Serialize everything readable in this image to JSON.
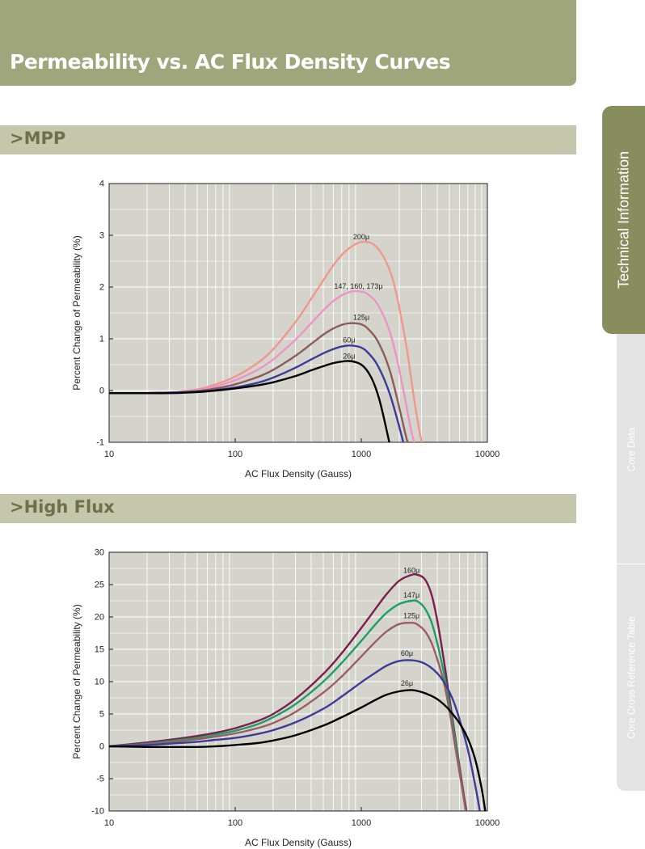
{
  "header": {
    "title": "Permeability vs. AC Flux Density Curves"
  },
  "side_tabs": [
    {
      "label": "Technical Information",
      "active": true
    },
    {
      "label": "Core Data",
      "active": false
    },
    {
      "label": "Core Cross Reference Table",
      "active": false
    }
  ],
  "sections": [
    {
      "label": "MPP"
    },
    {
      "label": "High Flux"
    }
  ],
  "colors": {
    "header_bg": "#a0a67c",
    "section_bg": "#c4c7ab",
    "tab_active": "#878d5c",
    "plot_bg": "#d4d4cc"
  },
  "chart_data": [
    {
      "type": "line",
      "xscale": "log",
      "xlim": [
        10,
        10000
      ],
      "ylim": [
        -1,
        4
      ],
      "xticks": [
        10,
        100,
        1000,
        10000
      ],
      "xtick_labels": [
        "10",
        "100",
        "1000",
        "10000"
      ],
      "yticks": [
        -1,
        0,
        1,
        2,
        3,
        4
      ],
      "ytick_labels": [
        "-1",
        "0",
        "1",
        "2",
        "3",
        "4"
      ],
      "xlabel": "AC Flux Density (Gauss)",
      "ylabel": "Percent Change of Permeability (%)",
      "grid": true,
      "series": [
        {
          "name": "200μ",
          "color": "#f0988a",
          "label_at": [
            1000,
            2.92
          ],
          "x": [
            10,
            20,
            30,
            50,
            70,
            100,
            150,
            200,
            300,
            400,
            500,
            600,
            700,
            800,
            900,
            1000,
            1200,
            1400,
            1600,
            1800,
            2000,
            2300,
            2600,
            2900,
            3100
          ],
          "y": [
            -0.05,
            -0.05,
            -0.04,
            0.02,
            0.12,
            0.27,
            0.53,
            0.8,
            1.32,
            1.77,
            2.13,
            2.42,
            2.62,
            2.75,
            2.83,
            2.87,
            2.85,
            2.7,
            2.45,
            2.1,
            1.6,
            0.8,
            -0.1,
            -0.8,
            -1.1
          ]
        },
        {
          "name": "147, 160, 173μ",
          "color": "#ec94c8",
          "label_at": [
            950,
            1.97
          ],
          "x": [
            10,
            20,
            30,
            50,
            70,
            100,
            150,
            200,
            300,
            400,
            500,
            600,
            700,
            800,
            900,
            1000,
            1100,
            1300,
            1500,
            1700,
            1900,
            2100,
            2300,
            2500,
            2700
          ],
          "y": [
            -0.05,
            -0.05,
            -0.04,
            0.0,
            0.08,
            0.2,
            0.4,
            0.6,
            0.98,
            1.3,
            1.55,
            1.73,
            1.84,
            1.9,
            1.92,
            1.91,
            1.88,
            1.72,
            1.45,
            1.1,
            0.65,
            0.15,
            -0.35,
            -0.8,
            -1.1
          ]
        },
        {
          "name": "125μ",
          "color": "#8c5c5c",
          "label_at": [
            1000,
            1.37
          ],
          "x": [
            10,
            20,
            30,
            50,
            70,
            100,
            150,
            200,
            300,
            400,
            500,
            600,
            700,
            800,
            900,
            1000,
            1100,
            1300,
            1500,
            1700,
            1900,
            2100,
            2300,
            2450
          ],
          "y": [
            -0.05,
            -0.05,
            -0.04,
            -0.01,
            0.04,
            0.12,
            0.26,
            0.4,
            0.67,
            0.9,
            1.08,
            1.2,
            1.27,
            1.3,
            1.3,
            1.28,
            1.22,
            1.02,
            0.72,
            0.35,
            -0.1,
            -0.55,
            -0.95,
            -1.1
          ]
        },
        {
          "name": "60μ",
          "color": "#3c3c98",
          "label_at": [
            800,
            0.93
          ],
          "x": [
            10,
            20,
            30,
            50,
            70,
            100,
            150,
            200,
            300,
            400,
            500,
            600,
            700,
            800,
            900,
            1000,
            1100,
            1300,
            1500,
            1700,
            1900,
            2100,
            2200
          ],
          "y": [
            -0.05,
            -0.05,
            -0.04,
            -0.02,
            0.01,
            0.06,
            0.15,
            0.25,
            0.44,
            0.6,
            0.72,
            0.8,
            0.85,
            0.87,
            0.86,
            0.83,
            0.76,
            0.55,
            0.25,
            -0.1,
            -0.5,
            -0.9,
            -1.1
          ]
        },
        {
          "name": "26μ",
          "color": "#000000",
          "label_at": [
            800,
            0.62
          ],
          "x": [
            10,
            20,
            30,
            50,
            70,
            100,
            150,
            200,
            300,
            400,
            500,
            600,
            700,
            800,
            900,
            1000,
            1100,
            1200,
            1300,
            1400,
            1500,
            1600,
            1700
          ],
          "y": [
            -0.05,
            -0.05,
            -0.05,
            -0.03,
            0.0,
            0.04,
            0.1,
            0.16,
            0.28,
            0.39,
            0.47,
            0.53,
            0.56,
            0.57,
            0.55,
            0.5,
            0.4,
            0.25,
            0.05,
            -0.2,
            -0.5,
            -0.8,
            -1.1
          ]
        }
      ]
    },
    {
      "type": "line",
      "xscale": "log",
      "xlim": [
        10,
        10000
      ],
      "ylim": [
        -10,
        30
      ],
      "xticks": [
        10,
        100,
        1000,
        10000
      ],
      "xtick_labels": [
        "10",
        "100",
        "1000",
        "10000"
      ],
      "yticks": [
        -10,
        -5,
        0,
        5,
        10,
        15,
        20,
        25,
        30
      ],
      "ytick_labels": [
        "-10",
        "-5",
        "0",
        "5",
        "10",
        "15",
        "20",
        "25",
        "30"
      ],
      "xlabel": "AC Flux Density (Gauss)",
      "ylabel": "Percent Change of Permeability (%)",
      "grid": true,
      "series": [
        {
          "name": "160μ",
          "color": "#7c1e4e",
          "label_at": [
            2500,
            26.8
          ],
          "x": [
            10,
            20,
            30,
            50,
            70,
            100,
            150,
            200,
            300,
            500,
            700,
            1000,
            1300,
            1600,
            2000,
            2500,
            2800,
            3200,
            3600,
            4000,
            4500,
            5000,
            5500,
            6000,
            6500,
            6900
          ],
          "y": [
            0,
            0.6,
            1.0,
            1.6,
            2.1,
            2.8,
            3.9,
            5.0,
            7.3,
            11.2,
            14.4,
            18.3,
            21.3,
            23.6,
            25.6,
            26.5,
            26.5,
            25.8,
            23.5,
            19.5,
            13.5,
            7.5,
            2.0,
            -3.0,
            -7.5,
            -10.5
          ]
        },
        {
          "name": "147μ",
          "color": "#1e9e64",
          "label_at": [
            2500,
            23.0
          ],
          "x": [
            10,
            20,
            30,
            50,
            70,
            100,
            150,
            200,
            300,
            500,
            700,
            1000,
            1300,
            1600,
            2000,
            2500,
            2800,
            3200,
            3600,
            4000,
            4500,
            5000,
            5500,
            6000,
            6500,
            6800
          ],
          "y": [
            0,
            0.4,
            0.8,
            1.3,
            1.8,
            2.4,
            3.4,
            4.5,
            6.5,
            10.0,
            12.9,
            16.3,
            18.9,
            20.7,
            22.0,
            22.5,
            22.4,
            21.3,
            19.2,
            16.0,
            11.5,
            6.5,
            1.5,
            -3.5,
            -8.0,
            -10.5
          ]
        },
        {
          "name": "125μ",
          "color": "#9c5c64",
          "label_at": [
            2500,
            19.8
          ],
          "x": [
            10,
            20,
            30,
            50,
            70,
            100,
            150,
            200,
            300,
            500,
            700,
            1000,
            1300,
            1600,
            2000,
            2500,
            2800,
            3200,
            3600,
            4000,
            4500,
            5000,
            5500,
            6000,
            6500,
            6800
          ],
          "y": [
            0,
            0.3,
            0.6,
            1.1,
            1.5,
            2.0,
            2.8,
            3.6,
            5.3,
            8.3,
            10.8,
            13.9,
            16.2,
            17.8,
            18.9,
            19.1,
            18.8,
            17.8,
            16.0,
            13.5,
            10.0,
            5.5,
            0.5,
            -4.0,
            -8.0,
            -10.5
          ]
        },
        {
          "name": "60μ",
          "color": "#3c3c98",
          "label_at": [
            2300,
            14.0
          ],
          "x": [
            10,
            20,
            30,
            50,
            70,
            100,
            150,
            200,
            300,
            500,
            700,
            1000,
            1300,
            1600,
            2000,
            2500,
            3000,
            3500,
            4000,
            4500,
            5000,
            5500,
            6000,
            7000,
            8000,
            8800
          ],
          "y": [
            0,
            0.2,
            0.4,
            0.7,
            1.0,
            1.3,
            1.9,
            2.5,
            3.7,
            5.8,
            7.7,
            9.9,
            11.4,
            12.5,
            13.2,
            13.3,
            13.0,
            12.3,
            11.3,
            10.0,
            8.4,
            6.5,
            4.2,
            -0.5,
            -6.0,
            -10.5
          ]
        },
        {
          "name": "26μ",
          "color": "#000000",
          "label_at": [
            2300,
            9.4
          ],
          "x": [
            10,
            20,
            30,
            50,
            70,
            100,
            150,
            200,
            300,
            500,
            700,
            1000,
            1300,
            1600,
            2000,
            2500,
            3000,
            3500,
            4000,
            4500,
            5000,
            6000,
            7000,
            8000,
            9000,
            9700
          ],
          "y": [
            0,
            -0.1,
            -0.1,
            -0.1,
            0,
            0.2,
            0.5,
            0.9,
            1.7,
            3.2,
            4.5,
            6.0,
            7.2,
            8.0,
            8.5,
            8.7,
            8.4,
            7.9,
            7.3,
            6.5,
            5.6,
            3.6,
            1.2,
            -2.0,
            -6.5,
            -10.5
          ]
        }
      ]
    }
  ]
}
